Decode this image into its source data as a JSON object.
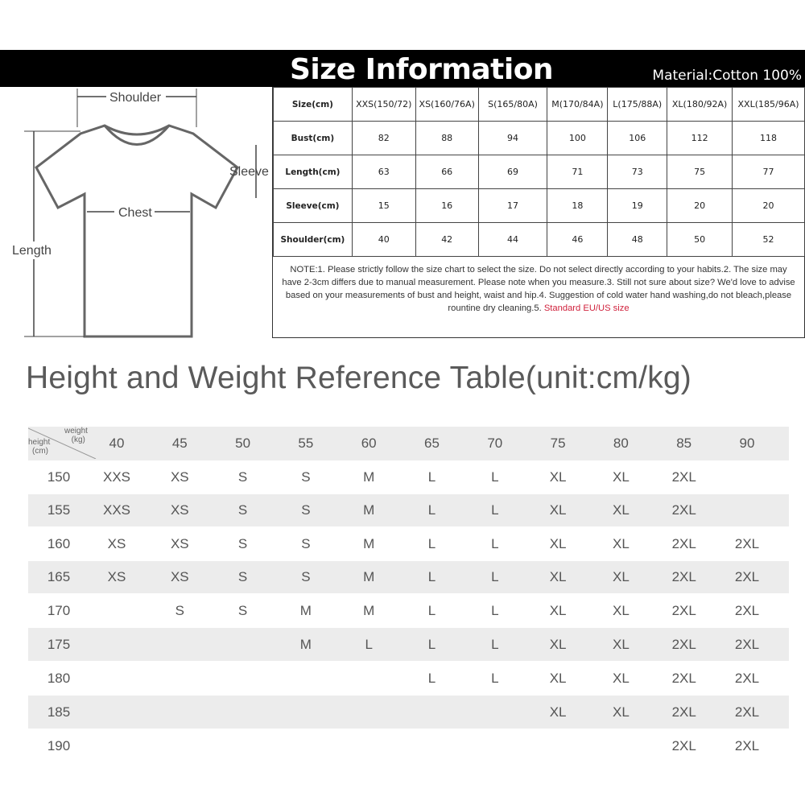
{
  "header": {
    "title": "Size Information",
    "material": "Material:Cotton 100%"
  },
  "diagram": {
    "shoulder": "Shoulder",
    "sleeve": "Sleeve",
    "chest": "Chest",
    "length": "Length"
  },
  "size_table": {
    "header": [
      "Size(cm)",
      "XXS(150/72)",
      "XS(160/76A)",
      "S(165/80A)",
      "M(170/84A)",
      "L(175/88A)",
      "XL(180/92A)",
      "XXL(185/96A)"
    ],
    "rows": [
      [
        "Bust(cm)",
        "82",
        "88",
        "94",
        "100",
        "106",
        "112",
        "118"
      ],
      [
        "Length(cm)",
        "63",
        "66",
        "69",
        "71",
        "73",
        "75",
        "77"
      ],
      [
        "Sleeve(cm)",
        "15",
        "16",
        "17",
        "18",
        "19",
        "20",
        "20"
      ],
      [
        "Shoulder(cm)",
        "40",
        "42",
        "44",
        "46",
        "48",
        "50",
        "52"
      ]
    ],
    "note": "NOTE:1. Please strictly follow the size chart to select the size. Do not select directly according to your habits.2. The size may have 2-3cm differs due to manual measurement. Please note when you measure.3. Still not sure about size? We'd love to advise based on your measurements of bust and height, waist and hip.4. Suggestion of cold water hand washing,do not bleach,please rountine dry cleaning.5. ",
    "note_highlight": "Standard EU/US size",
    "highlight_color": "#d0213c"
  },
  "reference": {
    "title": "Height and Weight Reference Table(unit:cm/kg)",
    "weight_label": "weight\n(kg)",
    "height_label": "height\n(cm)",
    "weights": [
      "40",
      "45",
      "50",
      "55",
      "60",
      "65",
      "70",
      "75",
      "80",
      "85",
      "90"
    ],
    "rows": [
      {
        "height": "150",
        "sizes": [
          "XXS",
          "XS",
          "S",
          "S",
          "M",
          "L",
          "L",
          "XL",
          "XL",
          "2XL",
          ""
        ]
      },
      {
        "height": "155",
        "sizes": [
          "XXS",
          "XS",
          "S",
          "S",
          "M",
          "L",
          "L",
          "XL",
          "XL",
          "2XL",
          ""
        ]
      },
      {
        "height": "160",
        "sizes": [
          "XS",
          "XS",
          "S",
          "S",
          "M",
          "L",
          "L",
          "XL",
          "XL",
          "2XL",
          "2XL"
        ]
      },
      {
        "height": "165",
        "sizes": [
          "XS",
          "XS",
          "S",
          "S",
          "M",
          "L",
          "L",
          "XL",
          "XL",
          "2XL",
          "2XL"
        ]
      },
      {
        "height": "170",
        "sizes": [
          "",
          "S",
          "S",
          "M",
          "M",
          "L",
          "L",
          "XL",
          "XL",
          "2XL",
          "2XL"
        ]
      },
      {
        "height": "175",
        "sizes": [
          "",
          "",
          "",
          "M",
          "L",
          "L",
          "L",
          "XL",
          "XL",
          "2XL",
          "2XL"
        ]
      },
      {
        "height": "180",
        "sizes": [
          "",
          "",
          "",
          "",
          "",
          "L",
          "L",
          "XL",
          "XL",
          "2XL",
          "2XL"
        ]
      },
      {
        "height": "185",
        "sizes": [
          "",
          "",
          "",
          "",
          "",
          "",
          "",
          "XL",
          "XL",
          "2XL",
          "2XL"
        ]
      },
      {
        "height": "190",
        "sizes": [
          "",
          "",
          "",
          "",
          "",
          "",
          "",
          "",
          "",
          "2XL",
          "2XL"
        ]
      }
    ]
  }
}
